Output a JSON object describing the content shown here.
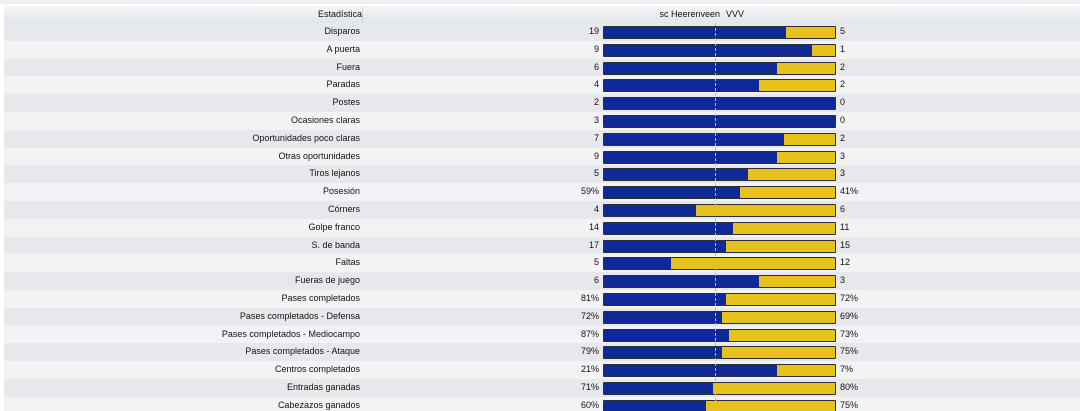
{
  "header": {
    "stat_label": "Estadística",
    "home_team": "sc Heerenveen",
    "away_team": "VVV"
  },
  "colors": {
    "home": "#0f2a96",
    "away": "#e7c21c"
  },
  "stats": [
    {
      "label": "Disparos",
      "home": "19",
      "away": "5",
      "home_share": 0.79
    },
    {
      "label": "A puerta",
      "home": "9",
      "away": "1",
      "home_share": 0.9
    },
    {
      "label": "Fuera",
      "home": "6",
      "away": "2",
      "home_share": 0.75
    },
    {
      "label": "Paradas",
      "home": "4",
      "away": "2",
      "home_share": 0.67
    },
    {
      "label": "Postes",
      "home": "2",
      "away": "0",
      "home_share": 1.0
    },
    {
      "label": "Ocasiones claras",
      "home": "3",
      "away": "0",
      "home_share": 1.0
    },
    {
      "label": "Oportunidades poco claras",
      "home": "7",
      "away": "2",
      "home_share": 0.78
    },
    {
      "label": "Otras oportunidades",
      "home": "9",
      "away": "3",
      "home_share": 0.75
    },
    {
      "label": "Tiros lejanos",
      "home": "5",
      "away": "3",
      "home_share": 0.625
    },
    {
      "label": "Posesión",
      "home": "59%",
      "away": "41%",
      "home_share": 0.59
    },
    {
      "label": "Córners",
      "home": "4",
      "away": "6",
      "home_share": 0.4
    },
    {
      "label": "Golpe franco",
      "home": "14",
      "away": "11",
      "home_share": 0.56
    },
    {
      "label": "S. de banda",
      "home": "17",
      "away": "15",
      "home_share": 0.53
    },
    {
      "label": "Faltas",
      "home": "5",
      "away": "12",
      "home_share": 0.29
    },
    {
      "label": "Fueras de juego",
      "home": "6",
      "away": "3",
      "home_share": 0.67
    },
    {
      "label": "Pases completados",
      "home": "81%",
      "away": "72%",
      "home_share": 0.53
    },
    {
      "label": "Pases completados - Defensa",
      "home": "72%",
      "away": "69%",
      "home_share": 0.51
    },
    {
      "label": "Pases completados - Mediocampo",
      "home": "87%",
      "away": "73%",
      "home_share": 0.54
    },
    {
      "label": "Pases completados - Ataque",
      "home": "79%",
      "away": "75%",
      "home_share": 0.51
    },
    {
      "label": "Centros completados",
      "home": "21%",
      "away": "7%",
      "home_share": 0.75
    },
    {
      "label": "Entradas ganadas",
      "home": "71%",
      "away": "80%",
      "home_share": 0.47
    },
    {
      "label": "Cabezazos ganados",
      "home": "60%",
      "away": "75%",
      "home_share": 0.44
    }
  ]
}
